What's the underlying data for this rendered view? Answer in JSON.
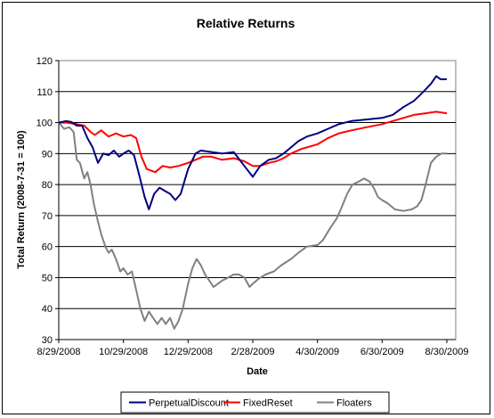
{
  "chart_data": {
    "type": "line",
    "title": "Relative Returns",
    "xlabel": "Date",
    "ylabel": "Total Return (2008-7-31 = 100)",
    "ylim": [
      30,
      120
    ],
    "yticks": [
      30,
      40,
      50,
      60,
      70,
      80,
      90,
      100,
      110,
      120
    ],
    "xlim": [
      "2008-08-29",
      "2009-08-30"
    ],
    "xtick_labels": [
      "8/29/2008",
      "10/29/2008",
      "12/29/2008",
      "2/28/2009",
      "4/30/2009",
      "6/30/2009",
      "8/30/2009"
    ],
    "xtick_dates": [
      "2008-08-29",
      "2008-10-29",
      "2008-12-29",
      "2009-02-28",
      "2009-04-30",
      "2009-06-30",
      "2009-08-30"
    ],
    "grid": "horizontal",
    "legend_position": "bottom",
    "series": [
      {
        "name": "PerpetualDiscount",
        "color": "#000080",
        "points": [
          [
            "2008-08-29",
            100
          ],
          [
            "2008-09-05",
            100.5
          ],
          [
            "2008-09-10",
            100.2
          ],
          [
            "2008-09-15",
            99
          ],
          [
            "2008-09-20",
            99
          ],
          [
            "2008-09-25",
            95
          ],
          [
            "2008-09-30",
            92
          ],
          [
            "2008-10-05",
            87
          ],
          [
            "2008-10-10",
            90
          ],
          [
            "2008-10-15",
            89.5
          ],
          [
            "2008-10-20",
            91
          ],
          [
            "2008-10-25",
            89
          ],
          [
            "2008-10-29",
            90
          ],
          [
            "2008-11-03",
            91
          ],
          [
            "2008-11-08",
            89.5
          ],
          [
            "2008-11-13",
            83
          ],
          [
            "2008-11-18",
            76
          ],
          [
            "2008-11-22",
            72
          ],
          [
            "2008-11-27",
            77
          ],
          [
            "2008-12-02",
            79
          ],
          [
            "2008-12-07",
            78
          ],
          [
            "2008-12-12",
            77
          ],
          [
            "2008-12-17",
            75
          ],
          [
            "2008-12-22",
            77
          ],
          [
            "2008-12-29",
            85
          ],
          [
            "2009-01-05",
            90
          ],
          [
            "2009-01-10",
            91
          ],
          [
            "2009-01-20",
            90.5
          ],
          [
            "2009-01-30",
            90
          ],
          [
            "2009-02-10",
            90.5
          ],
          [
            "2009-02-20",
            86
          ],
          [
            "2009-02-28",
            82.5
          ],
          [
            "2009-03-07",
            86
          ],
          [
            "2009-03-15",
            88
          ],
          [
            "2009-03-22",
            88.5
          ],
          [
            "2009-03-29",
            90
          ],
          [
            "2009-04-05",
            92
          ],
          [
            "2009-04-12",
            94
          ],
          [
            "2009-04-20",
            95.5
          ],
          [
            "2009-04-30",
            96.5
          ],
          [
            "2009-05-10",
            98
          ],
          [
            "2009-05-20",
            99.5
          ],
          [
            "2009-06-01",
            100.5
          ],
          [
            "2009-06-15",
            101
          ],
          [
            "2009-06-30",
            101.5
          ],
          [
            "2009-07-10",
            102.5
          ],
          [
            "2009-07-20",
            105
          ],
          [
            "2009-07-30",
            107
          ],
          [
            "2009-08-08",
            110
          ],
          [
            "2009-08-15",
            112.5
          ],
          [
            "2009-08-20",
            115
          ],
          [
            "2009-08-24",
            114
          ],
          [
            "2009-08-30",
            114
          ]
        ]
      },
      {
        "name": "FixedReset",
        "color": "#ff0000",
        "points": [
          [
            "2008-08-29",
            100
          ],
          [
            "2008-09-05",
            100
          ],
          [
            "2008-09-15",
            99.5
          ],
          [
            "2008-09-22",
            99
          ],
          [
            "2008-09-28",
            97
          ],
          [
            "2008-10-02",
            96
          ],
          [
            "2008-10-08",
            97.5
          ],
          [
            "2008-10-15",
            95.5
          ],
          [
            "2008-10-22",
            96.5
          ],
          [
            "2008-10-29",
            95.5
          ],
          [
            "2008-11-05",
            96
          ],
          [
            "2008-11-10",
            95
          ],
          [
            "2008-11-15",
            89
          ],
          [
            "2008-11-20",
            85
          ],
          [
            "2008-11-28",
            84
          ],
          [
            "2008-12-05",
            86
          ],
          [
            "2008-12-12",
            85.5
          ],
          [
            "2008-12-20",
            86
          ],
          [
            "2008-12-29",
            87
          ],
          [
            "2009-01-05",
            88
          ],
          [
            "2009-01-12",
            89
          ],
          [
            "2009-01-20",
            89
          ],
          [
            "2009-01-30",
            88
          ],
          [
            "2009-02-10",
            88.5
          ],
          [
            "2009-02-20",
            87.5
          ],
          [
            "2009-02-28",
            86
          ],
          [
            "2009-03-07",
            86
          ],
          [
            "2009-03-15",
            87
          ],
          [
            "2009-03-22",
            87.5
          ],
          [
            "2009-03-29",
            88.5
          ],
          [
            "2009-04-05",
            90
          ],
          [
            "2009-04-15",
            91.5
          ],
          [
            "2009-04-30",
            93
          ],
          [
            "2009-05-10",
            95
          ],
          [
            "2009-05-20",
            96.5
          ],
          [
            "2009-06-01",
            97.5
          ],
          [
            "2009-06-15",
            98.5
          ],
          [
            "2009-06-30",
            99.5
          ],
          [
            "2009-07-10",
            100.5
          ],
          [
            "2009-07-20",
            101.5
          ],
          [
            "2009-07-30",
            102.5
          ],
          [
            "2009-08-10",
            103
          ],
          [
            "2009-08-20",
            103.5
          ],
          [
            "2009-08-30",
            103
          ]
        ]
      },
      {
        "name": "Floaters",
        "color": "#808080",
        "points": [
          [
            "2008-08-29",
            100
          ],
          [
            "2008-09-03",
            98
          ],
          [
            "2008-09-08",
            98.5
          ],
          [
            "2008-09-12",
            97
          ],
          [
            "2008-09-15",
            88
          ],
          [
            "2008-09-18",
            87
          ],
          [
            "2008-09-22",
            82
          ],
          [
            "2008-09-25",
            84
          ],
          [
            "2008-09-28",
            80
          ],
          [
            "2008-10-01",
            74
          ],
          [
            "2008-10-05",
            68
          ],
          [
            "2008-10-08",
            64
          ],
          [
            "2008-10-12",
            60
          ],
          [
            "2008-10-15",
            58
          ],
          [
            "2008-10-18",
            59
          ],
          [
            "2008-10-22",
            56
          ],
          [
            "2008-10-26",
            52
          ],
          [
            "2008-10-29",
            53
          ],
          [
            "2008-11-02",
            51
          ],
          [
            "2008-11-06",
            52
          ],
          [
            "2008-11-10",
            46
          ],
          [
            "2008-11-14",
            40
          ],
          [
            "2008-11-18",
            36
          ],
          [
            "2008-11-22",
            39
          ],
          [
            "2008-11-26",
            37
          ],
          [
            "2008-11-30",
            35
          ],
          [
            "2008-12-04",
            37
          ],
          [
            "2008-12-08",
            35
          ],
          [
            "2008-12-12",
            37
          ],
          [
            "2008-12-16",
            33.5
          ],
          [
            "2008-12-20",
            36
          ],
          [
            "2008-12-24",
            40
          ],
          [
            "2008-12-29",
            48
          ],
          [
            "2009-01-02",
            53
          ],
          [
            "2009-01-06",
            56
          ],
          [
            "2009-01-10",
            54
          ],
          [
            "2009-01-14",
            51
          ],
          [
            "2009-01-18",
            49
          ],
          [
            "2009-01-22",
            47
          ],
          [
            "2009-01-26",
            48
          ],
          [
            "2009-01-30",
            49
          ],
          [
            "2009-02-05",
            50
          ],
          [
            "2009-02-10",
            51
          ],
          [
            "2009-02-15",
            51
          ],
          [
            "2009-02-20",
            50
          ],
          [
            "2009-02-25",
            47
          ],
          [
            "2009-02-28",
            48
          ],
          [
            "2009-03-05",
            49.5
          ],
          [
            "2009-03-12",
            51
          ],
          [
            "2009-03-20",
            52
          ],
          [
            "2009-03-27",
            54
          ],
          [
            "2009-04-05",
            56
          ],
          [
            "2009-04-12",
            58
          ],
          [
            "2009-04-20",
            60
          ],
          [
            "2009-04-30",
            60.5
          ],
          [
            "2009-05-05",
            62
          ],
          [
            "2009-05-12",
            66
          ],
          [
            "2009-05-18",
            69
          ],
          [
            "2009-05-22",
            72
          ],
          [
            "2009-05-28",
            77
          ],
          [
            "2009-06-02",
            80
          ],
          [
            "2009-06-08",
            81
          ],
          [
            "2009-06-13",
            82
          ],
          [
            "2009-06-18",
            81
          ],
          [
            "2009-06-22",
            79
          ],
          [
            "2009-06-26",
            76
          ],
          [
            "2009-06-30",
            75
          ],
          [
            "2009-07-05",
            74
          ],
          [
            "2009-07-12",
            72
          ],
          [
            "2009-07-20",
            71.5
          ],
          [
            "2009-07-28",
            72
          ],
          [
            "2009-08-02",
            73
          ],
          [
            "2009-08-06",
            75
          ],
          [
            "2009-08-10",
            80
          ],
          [
            "2009-08-15",
            87
          ],
          [
            "2009-08-20",
            89
          ],
          [
            "2009-08-25",
            90
          ],
          [
            "2009-08-30",
            90
          ]
        ]
      }
    ]
  }
}
